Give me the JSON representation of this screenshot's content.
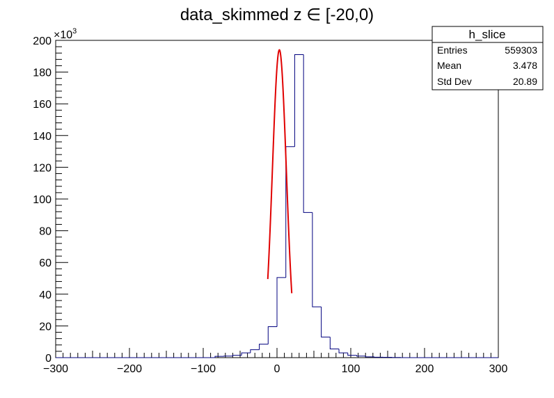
{
  "chart_data": {
    "type": "histogram",
    "title": "data_skimmed z  ∈ [-20,0)",
    "xlabel": "",
    "ylabel": "",
    "xlim": [
      -300,
      300
    ],
    "ylim": [
      0,
      200000
    ],
    "y_multiplier_label": "×10",
    "y_multiplier_exponent": "3",
    "x_ticks": [
      -300,
      -200,
      -100,
      0,
      100,
      200,
      300
    ],
    "y_ticks": [
      0,
      20,
      40,
      60,
      80,
      100,
      120,
      140,
      160,
      180,
      200
    ],
    "bin_width": 12,
    "bin_low": -300,
    "series": [
      {
        "name": "h_slice",
        "color": "#00007f",
        "values": [
          0,
          0,
          0,
          0,
          0,
          0,
          0,
          0,
          0,
          0,
          0,
          0,
          0,
          0,
          0,
          0,
          0,
          0,
          800,
          1000,
          1500,
          3000,
          5000,
          8500,
          19500,
          50500,
          133000,
          191000,
          91500,
          32000,
          13000,
          5500,
          3000,
          1500,
          1000,
          500,
          300,
          200,
          100,
          0,
          0,
          0,
          0,
          0,
          0,
          0,
          0,
          0,
          0,
          0
        ]
      }
    ],
    "fit": {
      "type": "gaussian",
      "color": "#e00000",
      "constant": 194000,
      "mean": 3.2,
      "sigma": 9.5,
      "range": [
        -12.5,
        20
      ]
    },
    "grid": false,
    "legend_position": "top-right"
  },
  "stats_box": {
    "title": "h_slice",
    "rows": [
      {
        "label": "Entries",
        "value": "559303"
      },
      {
        "label": "Mean",
        "value": "3.478"
      },
      {
        "label": "Std Dev",
        "value": "20.89"
      }
    ]
  }
}
